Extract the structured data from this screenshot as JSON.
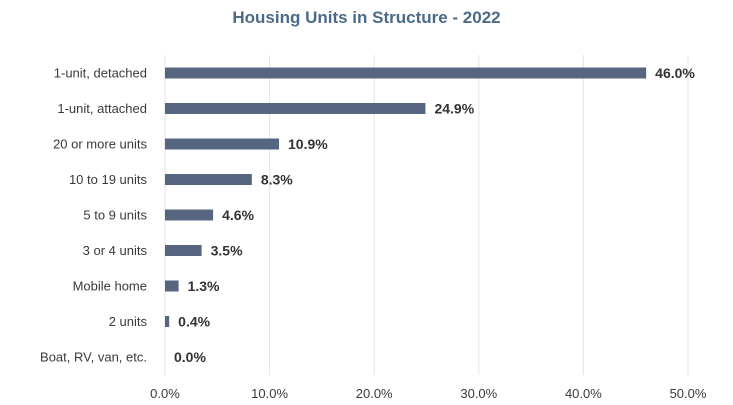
{
  "chart_data": {
    "type": "bar",
    "orientation": "horizontal",
    "title": "Housing Units in Structure - 2022",
    "categories": [
      "1-unit, detached",
      "1-unit, attached",
      "20 or more units",
      "10 to 19 units",
      "5 to 9 units",
      "3 or 4 units",
      "Mobile home",
      "2 units",
      "Boat, RV, van, etc."
    ],
    "values": [
      46.0,
      24.9,
      10.9,
      8.3,
      4.6,
      3.5,
      1.3,
      0.4,
      0.0
    ],
    "value_labels": [
      "46.0%",
      "24.9%",
      "10.9%",
      "8.3%",
      "4.6%",
      "3.5%",
      "1.3%",
      "0.4%",
      "0.0%"
    ],
    "xlim": [
      0,
      50
    ],
    "x_ticks": [
      0,
      10,
      20,
      30,
      40,
      50
    ],
    "x_tick_labels": [
      "0.0%",
      "10.0%",
      "20.0%",
      "30.0%",
      "40.0%",
      "50.0%"
    ],
    "xlabel": "",
    "ylabel": "",
    "grid": "vertical",
    "bar_color": "#566580",
    "title_color": "#4d6a87"
  }
}
